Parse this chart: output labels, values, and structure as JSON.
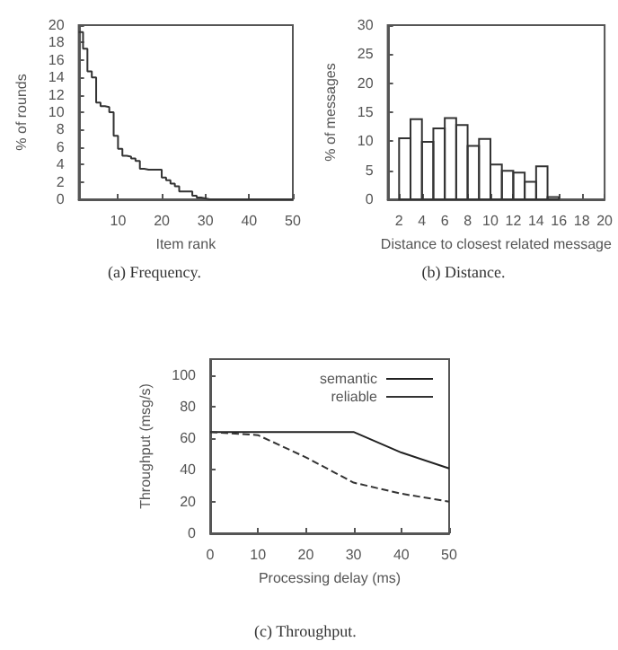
{
  "chart_data": [
    {
      "type": "step",
      "xlabel": "Item rank",
      "ylabel": "% of rounds",
      "color": "#333333",
      "annotations": [
        "(a) Frequency."
      ],
      "x": [
        1,
        2,
        3,
        4,
        5,
        6,
        7,
        8,
        9,
        10,
        11,
        12,
        13,
        14,
        15,
        16,
        17,
        18,
        19,
        20,
        21,
        22,
        23,
        24,
        25,
        26,
        27,
        28,
        29,
        30,
        31,
        32,
        33,
        34,
        35,
        36,
        37,
        38,
        39,
        40,
        41,
        42,
        43,
        44,
        45,
        46,
        47,
        48,
        49,
        50
      ],
      "values": [
        19.2,
        17.3,
        14.7,
        14,
        11.1,
        10.7,
        10.6,
        10,
        7.3,
        5.8,
        5,
        4.9,
        4.7,
        4.4,
        3.5,
        3.4,
        3.4,
        3.4,
        3.4,
        2.5,
        2.2,
        1.8,
        1.5,
        0.9,
        0.9,
        0.9,
        0.4,
        0.2,
        0.1,
        0,
        0,
        0,
        0,
        0,
        0,
        0,
        0,
        0,
        0,
        0,
        0,
        0,
        0,
        0,
        0,
        0,
        0,
        0,
        0,
        0
      ],
      "xlim": [
        1,
        50
      ],
      "xticks": [
        10,
        20,
        30,
        40,
        50
      ],
      "ylim": [
        0,
        20
      ],
      "yticks": [
        0,
        2,
        4,
        6,
        8,
        10,
        12,
        14,
        16,
        18,
        20
      ]
    },
    {
      "type": "histogram",
      "xlabel": "Distance to closest related message",
      "ylabel": "% of messages",
      "color": "#333333",
      "annotations": [
        "(b) Distance."
      ],
      "bins": [
        2,
        3,
        4,
        5,
        6,
        7,
        8,
        9,
        10,
        11,
        12,
        13,
        14,
        15,
        16
      ],
      "values": [
        10.5,
        13.8,
        9.9,
        12.2,
        14,
        12.8,
        9.2,
        10.4,
        6,
        4.9,
        4.6,
        3,
        5.7,
        0.4
      ],
      "xlim": [
        1,
        20
      ],
      "xticks": [
        2,
        4,
        6,
        8,
        10,
        12,
        14,
        16,
        18,
        20
      ],
      "ylim": [
        0,
        30
      ],
      "yticks": [
        0,
        5,
        10,
        15,
        20,
        25,
        30
      ]
    },
    {
      "type": "line",
      "xlabel": "Processing delay (ms)",
      "ylabel": "Throughput (msg/s)",
      "annotations": [
        "(c) Throughput."
      ],
      "legend": "top right",
      "series": [
        {
          "name": "semantic",
          "color": "#222222",
          "line_style": "solid",
          "x": [
            0,
            10,
            30,
            40,
            50
          ],
          "values": [
            64,
            64,
            64,
            51,
            41
          ]
        },
        {
          "name": "reliable",
          "color": "#333333",
          "line_style": "dashed",
          "x": [
            0,
            10,
            20,
            30,
            40,
            50
          ],
          "values": [
            64,
            62,
            48,
            32,
            25,
            20
          ]
        }
      ],
      "xlim": [
        0,
        50
      ],
      "xticks": [
        0,
        10,
        20,
        30,
        40,
        50
      ],
      "ylim": [
        0,
        110
      ],
      "yticks": [
        0,
        20,
        40,
        60,
        80,
        100
      ]
    }
  ]
}
